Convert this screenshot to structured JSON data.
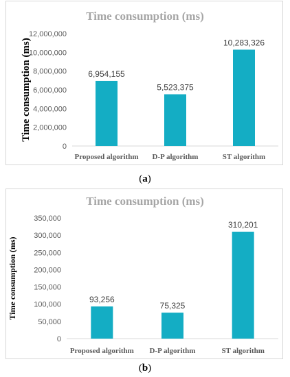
{
  "chart_data": [
    {
      "type": "bar",
      "panel_label": "a",
      "title": "Time consumption (ms)",
      "ylabel": "Time consumption (ms)",
      "xlabel": "",
      "categories": [
        "Proposed algorithm",
        "D-P algorithm",
        "ST algorithm"
      ],
      "values": [
        6954155,
        5523375,
        10283326
      ],
      "data_labels": [
        "6,954,155",
        "5,523,375",
        "10,283,326"
      ],
      "ylim": [
        0,
        12000000
      ],
      "yticks": [
        0,
        2000000,
        4000000,
        6000000,
        8000000,
        10000000,
        12000000
      ],
      "ytick_labels": [
        "0",
        "2,000,000",
        "4,000,000",
        "6,000,000",
        "8,000,000",
        "10,000,000",
        "12,000,000"
      ],
      "bar_color": "#14adc4",
      "grid": false
    },
    {
      "type": "bar",
      "panel_label": "b",
      "title": "Time consumption (ms)",
      "ylabel": "Time consumption (ms)",
      "xlabel": "",
      "categories": [
        "Proposed algorithm",
        "D-P algorithm",
        "ST algorithm"
      ],
      "values": [
        93256,
        75325,
        310201
      ],
      "data_labels": [
        "93,256",
        "75,325",
        "310,201"
      ],
      "ylim": [
        0,
        350000
      ],
      "yticks": [
        0,
        50000,
        100000,
        150000,
        200000,
        250000,
        300000,
        350000
      ],
      "ytick_labels": [
        "0",
        "50,000",
        "100,000",
        "150,000",
        "200,000",
        "250,000",
        "300,000",
        "350,000"
      ],
      "bar_color": "#14adc4",
      "grid": false
    }
  ]
}
